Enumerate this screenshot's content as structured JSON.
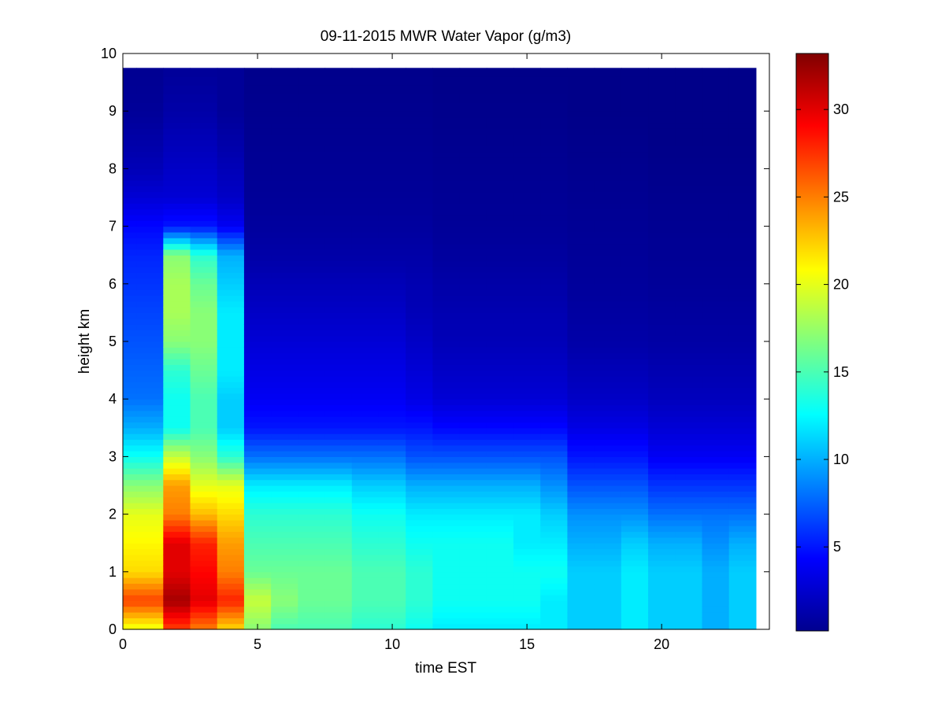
{
  "chart_data": {
    "type": "heatmap",
    "title": "09-11-2015 MWR Water Vapor (g/m3)",
    "xlabel": "time EST",
    "ylabel": "height km",
    "xlim": [
      0,
      24
    ],
    "ylim": [
      0,
      10
    ],
    "x_ticks": [
      "0",
      "5",
      "10",
      "15",
      "20"
    ],
    "y_ticks": [
      "0",
      "1",
      "2",
      "3",
      "4",
      "5",
      "6",
      "7",
      "8",
      "9",
      "10"
    ],
    "colorbar": {
      "colormap": "jet",
      "range": [
        0.2,
        33.2
      ],
      "ticks": [
        "5",
        "10",
        "15",
        "20",
        "25",
        "30"
      ]
    },
    "time_edges": [
      0,
      0.5,
      1.5,
      2.5,
      3.5,
      4.5,
      5.5,
      6.5,
      7.5,
      8.5,
      9.5,
      10.5,
      11.5,
      12.5,
      13.5,
      14.5,
      15.5,
      16.5,
      17.5,
      18.5,
      19.5,
      20.5,
      21.5,
      22.5,
      23.5
    ],
    "heights_km": [
      0,
      0.5,
      1,
      1.5,
      2,
      2.5,
      3,
      3.5,
      4,
      4.5,
      5,
      5.5,
      6,
      6.5,
      7,
      7.5,
      8,
      8.5,
      9,
      9.75
    ],
    "profiles": [
      [
        20,
        27,
        22,
        21,
        20,
        17,
        13,
        10,
        8,
        7.5,
        7,
        6.5,
        6,
        5.5,
        4.5,
        3,
        2,
        1.5,
        1,
        0.8
      ],
      [
        20,
        27,
        22,
        21,
        20,
        17,
        13,
        10,
        8,
        7.5,
        7,
        6.5,
        6,
        5.5,
        4.5,
        3,
        2,
        1.5,
        1,
        0.8
      ],
      [
        27,
        32,
        30,
        30,
        25,
        24,
        19,
        13,
        13,
        14,
        17,
        18,
        18,
        17,
        5,
        3,
        2.5,
        2,
        1.5,
        1
      ],
      [
        25,
        30,
        29,
        28,
        23,
        20,
        17,
        15,
        15,
        16,
        17,
        17,
        16,
        14,
        5,
        3,
        2.5,
        2,
        1.5,
        1
      ],
      [
        22,
        28,
        25,
        24,
        22,
        20,
        14,
        11,
        11,
        12,
        12,
        12,
        11,
        10,
        4,
        2.5,
        2,
        1.5,
        1,
        1
      ],
      [
        17,
        19,
        16,
        15,
        14,
        12,
        8,
        5,
        4,
        3.5,
        3,
        2.5,
        2,
        1.5,
        1.2,
        1,
        0.9,
        0.8,
        0.7,
        0.6
      ],
      [
        15,
        17,
        16,
        15,
        14,
        12,
        8,
        5,
        4,
        3.5,
        3,
        2.5,
        2,
        1.5,
        1.2,
        1,
        0.9,
        0.8,
        0.7,
        0.6
      ],
      [
        15,
        16,
        16,
        15,
        14,
        12,
        8,
        5,
        4,
        3.5,
        3,
        2.5,
        2,
        1.5,
        1.2,
        1,
        0.9,
        0.8,
        0.7,
        0.6
      ],
      [
        15,
        16,
        16,
        15,
        14,
        12,
        8,
        5,
        4,
        3.5,
        3,
        2.5,
        2,
        1.5,
        1.2,
        1,
        0.9,
        0.8,
        0.7,
        0.6
      ],
      [
        14,
        15,
        15,
        14,
        13,
        11,
        8,
        5,
        4,
        3.5,
        3,
        2.5,
        2,
        1.5,
        1.2,
        1,
        0.9,
        0.8,
        0.7,
        0.6
      ],
      [
        14,
        15,
        15,
        14,
        13,
        11,
        8,
        5,
        4,
        3.5,
        3,
        2.5,
        2,
        1.5,
        1.2,
        1,
        0.9,
        0.8,
        0.7,
        0.6
      ],
      [
        13,
        14,
        14,
        13,
        12,
        10,
        7,
        5,
        3.5,
        3,
        2.5,
        2,
        1.8,
        1.5,
        1.2,
        1,
        0.9,
        0.8,
        0.7,
        0.6
      ],
      [
        12,
        13,
        13,
        13,
        12,
        10,
        7,
        4.5,
        3,
        2.5,
        2,
        1.8,
        1.5,
        1.2,
        1,
        0.9,
        0.8,
        0.7,
        0.6,
        0.5
      ],
      [
        12,
        13,
        13,
        13,
        12,
        10,
        7,
        4.5,
        3,
        2.5,
        2,
        1.8,
        1.5,
        1.2,
        1,
        0.9,
        0.8,
        0.7,
        0.6,
        0.5
      ],
      [
        12,
        13,
        13,
        13,
        12,
        10,
        7,
        4.5,
        3,
        2.5,
        2,
        1.8,
        1.5,
        1.2,
        1,
        0.9,
        0.8,
        0.7,
        0.6,
        0.5
      ],
      [
        12,
        13,
        13,
        12,
        12,
        10,
        7,
        4.5,
        3,
        2.5,
        2,
        1.8,
        1.5,
        1.2,
        1,
        0.9,
        0.8,
        0.7,
        0.6,
        0.5
      ],
      [
        12,
        12,
        13,
        12,
        11,
        9,
        7,
        4.5,
        3,
        2.5,
        2,
        1.8,
        1.5,
        1.2,
        1,
        0.9,
        0.8,
        0.7,
        0.6,
        0.5
      ],
      [
        11,
        11,
        11,
        10,
        9,
        7,
        5,
        3.5,
        2.5,
        2,
        1.5,
        1.3,
        1.1,
        1,
        0.9,
        0.8,
        0.7,
        0.6,
        0.5,
        0.5
      ],
      [
        11,
        11,
        11,
        10,
        9,
        7,
        5,
        3.5,
        2.5,
        2,
        1.5,
        1.3,
        1.1,
        1,
        0.9,
        0.8,
        0.7,
        0.6,
        0.5,
        0.5
      ],
      [
        12,
        12,
        12,
        11,
        9,
        7,
        5,
        3.5,
        2.5,
        2,
        1.5,
        1.3,
        1.1,
        1,
        0.9,
        0.8,
        0.7,
        0.6,
        0.5,
        0.5
      ],
      [
        11,
        11,
        11,
        10,
        8,
        6,
        4,
        3,
        2.2,
        1.8,
        1.4,
        1.2,
        1,
        0.9,
        0.8,
        0.7,
        0.6,
        0.5,
        0.5,
        0.5
      ],
      [
        11,
        11,
        11,
        10,
        8,
        6,
        4,
        3,
        2.2,
        1.8,
        1.4,
        1.2,
        1,
        0.9,
        0.8,
        0.7,
        0.6,
        0.5,
        0.5,
        0.5
      ],
      [
        10,
        10,
        10,
        9,
        8,
        6,
        4,
        3,
        2.2,
        1.8,
        1.4,
        1.2,
        1,
        0.9,
        0.8,
        0.7,
        0.6,
        0.5,
        0.5,
        0.5
      ],
      [
        11,
        11,
        11,
        10,
        8,
        6,
        4,
        3,
        2.2,
        1.8,
        1.4,
        1.2,
        1,
        0.9,
        0.8,
        0.7,
        0.6,
        0.5,
        0.5,
        0.5
      ]
    ]
  }
}
